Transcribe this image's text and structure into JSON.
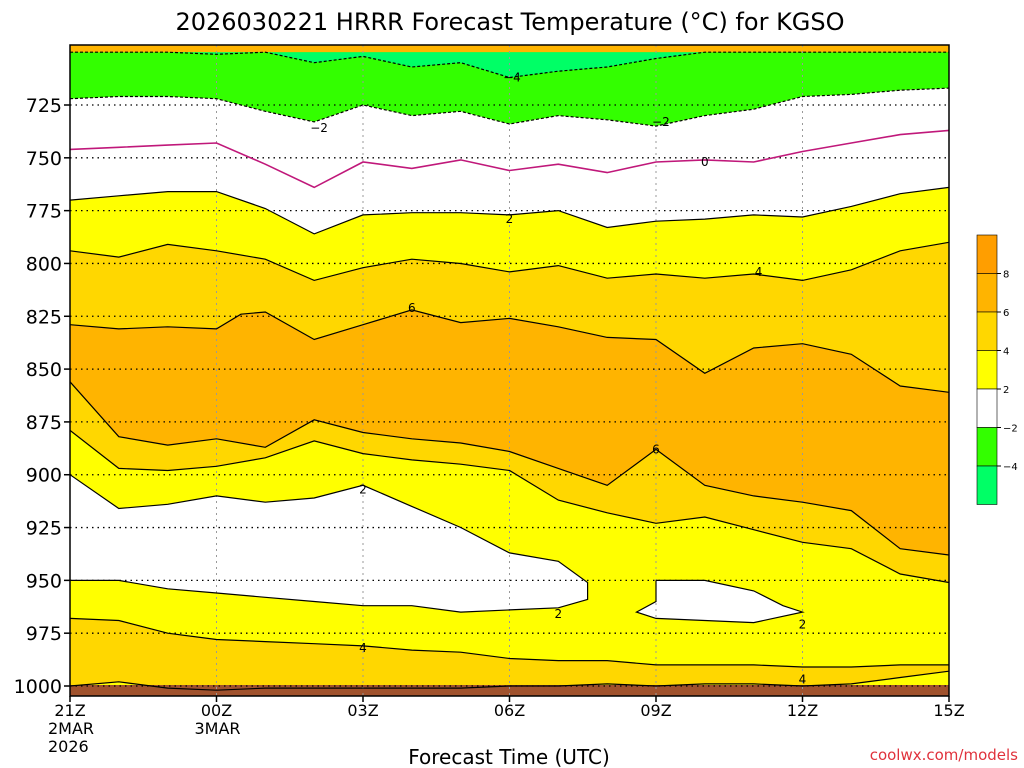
{
  "title": "2026030221 HRRR Forecast Temperature (°C) for KGSO",
  "credit": "coolwx.com/models",
  "chart_data": {
    "type": "heatmap",
    "title": "2026030221 HRRR Forecast Temperature (°C) for KGSO",
    "xlabel": "Forecast Time (UTC)",
    "ylabel": "",
    "x_ticks": [
      {
        "label": "21Z",
        "sub": [
          "2MAR",
          "2026"
        ],
        "hour": 0
      },
      {
        "label": "00Z",
        "sub": [
          "3MAR"
        ],
        "hour": 3
      },
      {
        "label": "03Z",
        "sub": [],
        "hour": 6
      },
      {
        "label": "06Z",
        "sub": [],
        "hour": 9
      },
      {
        "label": "09Z",
        "sub": [],
        "hour": 12
      },
      {
        "label": "12Z",
        "sub": [],
        "hour": 15
      },
      {
        "label": "15Z",
        "sub": [],
        "hour": 18
      }
    ],
    "y_ticks": [
      725,
      750,
      775,
      800,
      825,
      850,
      875,
      900,
      925,
      950,
      975,
      1000
    ],
    "x_range_hours": [
      0,
      18
    ],
    "y_range_hpa": [
      700,
      1005
    ],
    "grid": true,
    "colorbar": {
      "position": "right",
      "levels": [
        {
          "from": 8,
          "to": 10,
          "color": "#ff9e00"
        },
        {
          "from": 6,
          "to": 8,
          "color": "#ffb400"
        },
        {
          "from": 4,
          "to": 6,
          "color": "#ffd700"
        },
        {
          "from": 2,
          "to": 4,
          "color": "#ffff00"
        },
        {
          "from": -2,
          "to": 2,
          "color": "#ffffff"
        },
        {
          "from": -4,
          "to": -2,
          "color": "#33ff00"
        },
        {
          "from": -6,
          "to": -4,
          "color": "#00ff66"
        }
      ],
      "tick_labels": [
        "8",
        "6",
        "4",
        "2",
        "−2",
        "−4"
      ]
    },
    "ground_color": "#a0522d",
    "contour_labels": [
      {
        "text": "−4",
        "x": 9.05,
        "y": 712
      },
      {
        "text": "−2",
        "x": 5.1,
        "y": 736
      },
      {
        "text": "−2",
        "x": 12.1,
        "y": 733
      },
      {
        "text": "0",
        "x": 13.0,
        "y": 752
      },
      {
        "text": "2",
        "x": 9.0,
        "y": 779
      },
      {
        "text": "4",
        "x": 14.1,
        "y": 804
      },
      {
        "text": "6",
        "x": 7.0,
        "y": 821
      },
      {
        "text": "6",
        "x": 12.0,
        "y": 888
      },
      {
        "text": "2",
        "x": 6.0,
        "y": 907
      },
      {
        "text": "2",
        "x": 10.0,
        "y": 966
      },
      {
        "text": "2",
        "x": 15.0,
        "y": 971
      },
      {
        "text": "4",
        "x": 6.0,
        "y": 982
      },
      {
        "text": "4",
        "x": 15.0,
        "y": 997
      }
    ],
    "contours": [
      {
        "level": -4,
        "color": "#000000",
        "dashed": true,
        "points": [
          [
            0,
            700
          ],
          [
            2,
            700
          ],
          [
            3,
            701
          ],
          [
            4,
            700
          ],
          [
            5,
            705
          ],
          [
            6,
            702
          ],
          [
            7,
            707
          ],
          [
            8,
            705
          ],
          [
            9,
            712
          ],
          [
            10,
            709
          ],
          [
            11,
            707
          ],
          [
            12,
            703
          ],
          [
            13,
            700
          ],
          [
            18,
            700
          ]
        ]
      },
      {
        "level": -2,
        "color": "#000000",
        "dashed": true,
        "points": [
          [
            0,
            722
          ],
          [
            1,
            721
          ],
          [
            2,
            721
          ],
          [
            3,
            722
          ],
          [
            4,
            728
          ],
          [
            5,
            733
          ],
          [
            6,
            725
          ],
          [
            7,
            730
          ],
          [
            8,
            728
          ],
          [
            9,
            734
          ],
          [
            10,
            730
          ],
          [
            11,
            732
          ],
          [
            12,
            735
          ],
          [
            13,
            730
          ],
          [
            14,
            727
          ],
          [
            15,
            721
          ],
          [
            16,
            720
          ],
          [
            17,
            718
          ],
          [
            18,
            717
          ]
        ]
      },
      {
        "level": 0,
        "color": "#c0187a",
        "dashed": false,
        "points": [
          [
            0,
            746
          ],
          [
            1,
            745
          ],
          [
            2,
            744
          ],
          [
            3,
            743
          ],
          [
            4,
            753
          ],
          [
            5,
            764
          ],
          [
            6,
            752
          ],
          [
            7,
            755
          ],
          [
            8,
            751
          ],
          [
            9,
            756
          ],
          [
            10,
            753
          ],
          [
            11,
            757
          ],
          [
            12,
            752
          ],
          [
            13,
            751
          ],
          [
            14,
            752
          ],
          [
            15,
            747
          ],
          [
            16,
            743
          ],
          [
            17,
            739
          ],
          [
            18,
            737
          ]
        ]
      },
      {
        "level": 2,
        "color": "#000000",
        "dashed": false,
        "points": [
          [
            0,
            770
          ],
          [
            1,
            768
          ],
          [
            2,
            766
          ],
          [
            3,
            766
          ],
          [
            4,
            774
          ],
          [
            5,
            786
          ],
          [
            6,
            777
          ],
          [
            7,
            776
          ],
          [
            8,
            776
          ],
          [
            9,
            777
          ],
          [
            10,
            775
          ],
          [
            11,
            783
          ],
          [
            12,
            780
          ],
          [
            13,
            779
          ],
          [
            14,
            777
          ],
          [
            15,
            778
          ],
          [
            16,
            773
          ],
          [
            17,
            767
          ],
          [
            18,
            764
          ]
        ]
      },
      {
        "level": 4,
        "color": "#000000",
        "dashed": false,
        "points": [
          [
            0,
            794
          ],
          [
            1,
            797
          ],
          [
            2,
            791
          ],
          [
            3,
            794
          ],
          [
            4,
            798
          ],
          [
            5,
            808
          ],
          [
            6,
            802
          ],
          [
            7,
            798
          ],
          [
            8,
            800
          ],
          [
            9,
            804
          ],
          [
            10,
            801
          ],
          [
            11,
            807
          ],
          [
            12,
            805
          ],
          [
            13,
            807
          ],
          [
            14,
            805
          ],
          [
            15,
            808
          ],
          [
            16,
            803
          ],
          [
            17,
            794
          ],
          [
            18,
            790
          ]
        ]
      },
      {
        "level": 6,
        "color": "#000000",
        "dashed": false,
        "points": [
          [
            0,
            829
          ],
          [
            1,
            831
          ],
          [
            2,
            830
          ],
          [
            3,
            831
          ],
          [
            3.5,
            824
          ],
          [
            4,
            823
          ],
          [
            5,
            836
          ],
          [
            6,
            829
          ],
          [
            7,
            822
          ],
          [
            8,
            828
          ],
          [
            9,
            826
          ],
          [
            10,
            830
          ],
          [
            11,
            835
          ],
          [
            12,
            836
          ],
          [
            13,
            852
          ],
          [
            14,
            840
          ],
          [
            15,
            838
          ],
          [
            16,
            843
          ],
          [
            17,
            858
          ],
          [
            18,
            861
          ]
        ]
      },
      {
        "level": 6,
        "color": "#000000",
        "dashed": false,
        "points": [
          [
            0,
            856
          ],
          [
            1,
            882
          ],
          [
            2,
            886
          ],
          [
            3,
            883
          ],
          [
            4,
            887
          ],
          [
            5,
            874
          ],
          [
            6,
            880
          ],
          [
            7,
            883
          ],
          [
            8,
            885
          ],
          [
            9,
            889
          ],
          [
            10,
            897
          ],
          [
            11,
            905
          ],
          [
            12,
            888
          ],
          [
            13,
            905
          ],
          [
            14,
            910
          ],
          [
            15,
            913
          ],
          [
            16,
            917
          ],
          [
            17,
            935
          ],
          [
            18,
            938
          ]
        ]
      },
      {
        "level": 4,
        "color": "#000000",
        "dashed": false,
        "points": [
          [
            0,
            879
          ],
          [
            1,
            897
          ],
          [
            2,
            898
          ],
          [
            3,
            896
          ],
          [
            4,
            892
          ],
          [
            5,
            884
          ],
          [
            6,
            890
          ],
          [
            7,
            893
          ],
          [
            8,
            895
          ],
          [
            9,
            898
          ],
          [
            10,
            912
          ],
          [
            11,
            918
          ],
          [
            12,
            923
          ],
          [
            13,
            920
          ],
          [
            14,
            926
          ],
          [
            15,
            932
          ],
          [
            16,
            935
          ],
          [
            17,
            947
          ],
          [
            18,
            951
          ]
        ]
      },
      {
        "level": 2,
        "color": "#000000",
        "dashed": false,
        "points": [
          [
            0,
            900
          ],
          [
            1,
            916
          ],
          [
            2,
            914
          ],
          [
            3,
            910
          ],
          [
            4,
            913
          ],
          [
            5,
            911
          ],
          [
            6,
            905
          ],
          [
            7,
            915
          ],
          [
            8,
            925
          ],
          [
            9,
            937
          ],
          [
            10,
            941
          ],
          [
            10.6,
            951
          ],
          [
            10.6,
            959
          ],
          [
            10,
            963
          ],
          [
            9,
            964
          ],
          [
            8,
            965
          ],
          [
            7,
            962
          ],
          [
            6,
            962
          ],
          [
            5,
            960
          ],
          [
            4,
            958
          ],
          [
            3,
            956
          ],
          [
            2,
            954
          ],
          [
            1,
            950
          ],
          [
            0,
            950
          ]
        ]
      },
      {
        "level": 4,
        "color": "#000000",
        "dashed": false,
        "points": [
          [
            0,
            968
          ],
          [
            1,
            969
          ],
          [
            2,
            975
          ],
          [
            3,
            978
          ],
          [
            4,
            979
          ],
          [
            5,
            980
          ],
          [
            6,
            981
          ],
          [
            7,
            983
          ],
          [
            8,
            984
          ],
          [
            9,
            987
          ],
          [
            10,
            988
          ],
          [
            11,
            988
          ],
          [
            12,
            990
          ],
          [
            13,
            990
          ],
          [
            14,
            990
          ],
          [
            15,
            991
          ],
          [
            16,
            991
          ],
          [
            17,
            990
          ],
          [
            18,
            990
          ]
        ]
      },
      {
        "level": 4,
        "color": "#000000",
        "dashed": false,
        "points": [
          [
            0,
            1000
          ],
          [
            1,
            998
          ],
          [
            2,
            1001
          ],
          [
            3,
            1002
          ],
          [
            4,
            1001
          ],
          [
            5,
            1001
          ],
          [
            6,
            1001
          ],
          [
            7,
            1001
          ],
          [
            8,
            1001
          ],
          [
            9,
            1000
          ],
          [
            10,
            1000
          ],
          [
            11,
            999
          ],
          [
            12,
            1000
          ],
          [
            13,
            999
          ],
          [
            14,
            999
          ],
          [
            15,
            1000
          ],
          [
            16,
            999
          ],
          [
            17,
            996
          ],
          [
            18,
            993
          ]
        ]
      },
      {
        "level": 2,
        "color": "#000000",
        "dashed": false,
        "points": [
          [
            12,
            950
          ],
          [
            13,
            950
          ],
          [
            14,
            955
          ],
          [
            14.6,
            962
          ],
          [
            15,
            965
          ],
          [
            14,
            970
          ],
          [
            13,
            969
          ],
          [
            12,
            968
          ],
          [
            11.6,
            965
          ],
          [
            12,
            960
          ],
          [
            12,
            950
          ]
        ]
      }
    ]
  }
}
